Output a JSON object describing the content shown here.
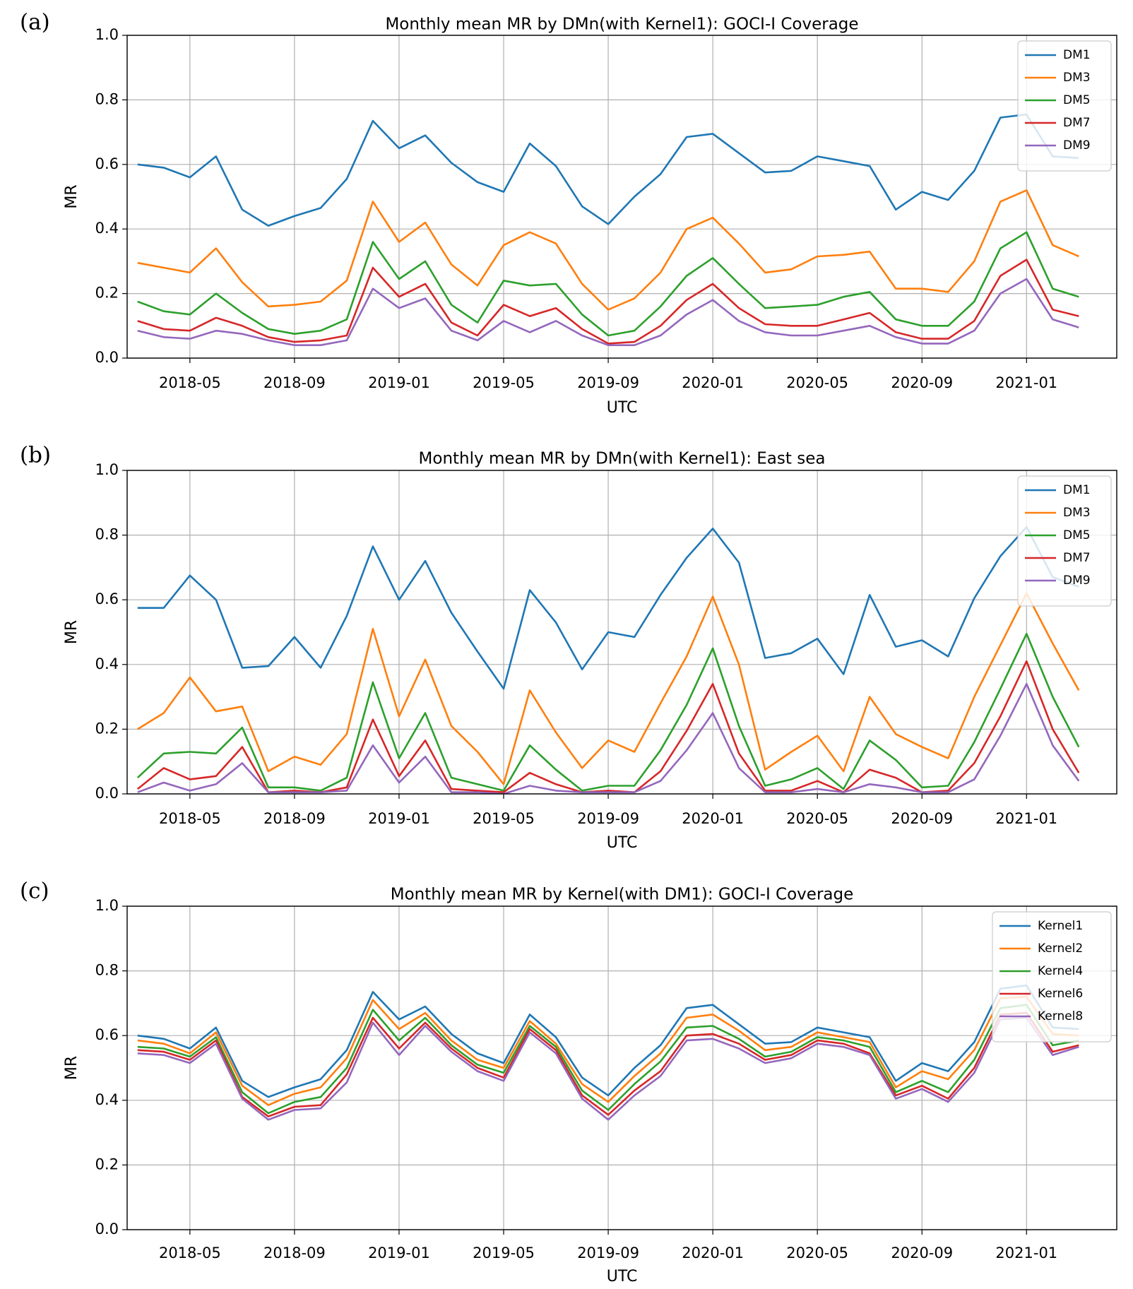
{
  "chart_data": [
    {
      "panel_label": "(a)",
      "type": "line",
      "title": "Monthly mean MR by DMn(with Kernel1): GOCI-I Coverage",
      "xlabel": "UTC",
      "ylabel": "MR",
      "ylim": [
        0,
        1.0
      ],
      "yticks": [
        "0.0",
        "0.2",
        "0.4",
        "0.6",
        "0.8",
        "1.0"
      ],
      "xticks": [
        "2018-05",
        "2018-09",
        "2019-01",
        "2019-05",
        "2019-09",
        "2020-01",
        "2020-05",
        "2020-09",
        "2021-01"
      ],
      "grid": true,
      "legend_position": "top-right",
      "x": [
        "2018-03",
        "2018-04",
        "2018-05",
        "2018-06",
        "2018-07",
        "2018-08",
        "2018-09",
        "2018-10",
        "2018-11",
        "2018-12",
        "2019-01",
        "2019-02",
        "2019-03",
        "2019-04",
        "2019-05",
        "2019-06",
        "2019-07",
        "2019-08",
        "2019-09",
        "2019-10",
        "2019-11",
        "2019-12",
        "2020-01",
        "2020-02",
        "2020-03",
        "2020-04",
        "2020-05",
        "2020-06",
        "2020-07",
        "2020-08",
        "2020-09",
        "2020-10",
        "2020-11",
        "2020-12",
        "2021-01",
        "2021-02",
        "2021-03"
      ],
      "series": [
        {
          "name": "DM1",
          "color": "#1f77b4",
          "values": [
            0.6,
            0.59,
            0.56,
            0.625,
            0.46,
            0.41,
            0.44,
            0.465,
            0.555,
            0.735,
            0.65,
            0.69,
            0.605,
            0.545,
            0.515,
            0.665,
            0.595,
            0.47,
            0.415,
            0.5,
            0.57,
            0.685,
            0.695,
            0.635,
            0.575,
            0.58,
            0.625,
            0.61,
            0.595,
            0.46,
            0.515,
            0.49,
            0.58,
            0.745,
            0.755,
            0.625,
            0.62
          ]
        },
        {
          "name": "DM3",
          "color": "#ff7f0e",
          "values": [
            0.295,
            0.28,
            0.265,
            0.34,
            0.235,
            0.16,
            0.165,
            0.175,
            0.24,
            0.485,
            0.36,
            0.42,
            0.29,
            0.225,
            0.35,
            0.39,
            0.355,
            0.23,
            0.15,
            0.185,
            0.265,
            0.4,
            0.435,
            0.355,
            0.265,
            0.275,
            0.315,
            0.32,
            0.33,
            0.215,
            0.215,
            0.205,
            0.3,
            0.485,
            0.52,
            0.35,
            0.315
          ]
        },
        {
          "name": "DM5",
          "color": "#2ca02c",
          "values": [
            0.175,
            0.145,
            0.135,
            0.2,
            0.14,
            0.09,
            0.075,
            0.085,
            0.12,
            0.36,
            0.245,
            0.3,
            0.165,
            0.11,
            0.24,
            0.225,
            0.23,
            0.135,
            0.07,
            0.085,
            0.16,
            0.255,
            0.31,
            0.23,
            0.155,
            0.16,
            0.165,
            0.19,
            0.205,
            0.12,
            0.1,
            0.1,
            0.175,
            0.34,
            0.39,
            0.215,
            0.19
          ]
        },
        {
          "name": "DM7",
          "color": "#d62728",
          "values": [
            0.115,
            0.09,
            0.085,
            0.125,
            0.1,
            0.065,
            0.05,
            0.055,
            0.07,
            0.28,
            0.19,
            0.23,
            0.11,
            0.07,
            0.165,
            0.13,
            0.155,
            0.09,
            0.045,
            0.05,
            0.1,
            0.18,
            0.23,
            0.155,
            0.105,
            0.1,
            0.1,
            0.12,
            0.14,
            0.08,
            0.06,
            0.06,
            0.115,
            0.255,
            0.305,
            0.15,
            0.13
          ]
        },
        {
          "name": "DM9",
          "color": "#9467bd",
          "values": [
            0.085,
            0.065,
            0.06,
            0.085,
            0.075,
            0.055,
            0.04,
            0.04,
            0.055,
            0.215,
            0.155,
            0.185,
            0.085,
            0.055,
            0.115,
            0.08,
            0.115,
            0.07,
            0.04,
            0.04,
            0.07,
            0.135,
            0.18,
            0.115,
            0.08,
            0.07,
            0.07,
            0.085,
            0.1,
            0.065,
            0.045,
            0.045,
            0.085,
            0.2,
            0.245,
            0.12,
            0.095
          ]
        }
      ]
    },
    {
      "panel_label": "(b)",
      "type": "line",
      "title": "Monthly mean MR by DMn(with Kernel1): East sea",
      "xlabel": "UTC",
      "ylabel": "MR",
      "ylim": [
        0,
        1.0
      ],
      "yticks": [
        "0.0",
        "0.2",
        "0.4",
        "0.6",
        "0.8",
        "1.0"
      ],
      "xticks": [
        "2018-05",
        "2018-09",
        "2019-01",
        "2019-05",
        "2019-09",
        "2020-01",
        "2020-05",
        "2020-09",
        "2021-01"
      ],
      "grid": true,
      "legend_position": "top-right",
      "x": [
        "2018-03",
        "2018-04",
        "2018-05",
        "2018-06",
        "2018-07",
        "2018-08",
        "2018-09",
        "2018-10",
        "2018-11",
        "2018-12",
        "2019-01",
        "2019-02",
        "2019-03",
        "2019-04",
        "2019-05",
        "2019-06",
        "2019-07",
        "2019-08",
        "2019-09",
        "2019-10",
        "2019-11",
        "2019-12",
        "2020-01",
        "2020-02",
        "2020-03",
        "2020-04",
        "2020-05",
        "2020-06",
        "2020-07",
        "2020-08",
        "2020-09",
        "2020-10",
        "2020-11",
        "2020-12",
        "2021-01",
        "2021-02",
        "2021-03"
      ],
      "series": [
        {
          "name": "DM1",
          "color": "#1f77b4",
          "values": [
            0.575,
            0.575,
            0.675,
            0.6,
            0.39,
            0.395,
            0.485,
            0.39,
            0.55,
            0.765,
            0.6,
            0.72,
            0.56,
            0.44,
            0.325,
            0.63,
            0.53,
            0.385,
            0.5,
            0.485,
            0.615,
            0.73,
            0.82,
            0.715,
            0.42,
            0.435,
            0.48,
            0.37,
            0.615,
            0.455,
            0.475,
            0.425,
            0.605,
            0.735,
            0.825,
            0.67,
            0.64
          ]
        },
        {
          "name": "DM3",
          "color": "#ff7f0e",
          "values": [
            0.2,
            0.25,
            0.36,
            0.255,
            0.27,
            0.07,
            0.115,
            0.09,
            0.185,
            0.51,
            0.24,
            0.415,
            0.21,
            0.13,
            0.03,
            0.32,
            0.19,
            0.08,
            0.165,
            0.13,
            0.28,
            0.425,
            0.61,
            0.4,
            0.075,
            0.13,
            0.18,
            0.07,
            0.3,
            0.185,
            0.145,
            0.11,
            0.3,
            0.46,
            0.62,
            0.465,
            0.32
          ]
        },
        {
          "name": "DM5",
          "color": "#2ca02c",
          "values": [
            0.05,
            0.125,
            0.13,
            0.125,
            0.205,
            0.02,
            0.02,
            0.01,
            0.05,
            0.345,
            0.11,
            0.25,
            0.05,
            0.03,
            0.01,
            0.15,
            0.075,
            0.01,
            0.025,
            0.025,
            0.135,
            0.275,
            0.45,
            0.21,
            0.025,
            0.045,
            0.08,
            0.015,
            0.165,
            0.105,
            0.02,
            0.025,
            0.16,
            0.325,
            0.495,
            0.3,
            0.145
          ]
        },
        {
          "name": "DM7",
          "color": "#d62728",
          "values": [
            0.015,
            0.08,
            0.045,
            0.055,
            0.145,
            0.005,
            0.01,
            0.005,
            0.02,
            0.23,
            0.055,
            0.165,
            0.015,
            0.01,
            0.005,
            0.065,
            0.03,
            0.005,
            0.01,
            0.005,
            0.07,
            0.195,
            0.34,
            0.125,
            0.01,
            0.01,
            0.04,
            0.005,
            0.075,
            0.05,
            0.005,
            0.01,
            0.095,
            0.24,
            0.41,
            0.2,
            0.065
          ]
        },
        {
          "name": "DM9",
          "color": "#9467bd",
          "values": [
            0.005,
            0.035,
            0.01,
            0.03,
            0.095,
            0.005,
            0.005,
            0.005,
            0.01,
            0.15,
            0.035,
            0.115,
            0.005,
            0.005,
            0.0,
            0.025,
            0.01,
            0.005,
            0.005,
            0.005,
            0.04,
            0.135,
            0.25,
            0.08,
            0.005,
            0.005,
            0.015,
            0.005,
            0.03,
            0.02,
            0.005,
            0.005,
            0.045,
            0.18,
            0.34,
            0.15,
            0.04
          ]
        }
      ]
    },
    {
      "panel_label": "(c)",
      "type": "line",
      "title": "Monthly mean MR by Kernel(with DM1): GOCI-I Coverage",
      "xlabel": "UTC",
      "ylabel": "MR",
      "ylim": [
        0,
        1.0
      ],
      "yticks": [
        "0.0",
        "0.2",
        "0.4",
        "0.6",
        "0.8",
        "1.0"
      ],
      "xticks": [
        "2018-05",
        "2018-09",
        "2019-01",
        "2019-05",
        "2019-09",
        "2020-01",
        "2020-05",
        "2020-09",
        "2021-01"
      ],
      "grid": true,
      "legend_position": "top-right",
      "x": [
        "2018-03",
        "2018-04",
        "2018-05",
        "2018-06",
        "2018-07",
        "2018-08",
        "2018-09",
        "2018-10",
        "2018-11",
        "2018-12",
        "2019-01",
        "2019-02",
        "2019-03",
        "2019-04",
        "2019-05",
        "2019-06",
        "2019-07",
        "2019-08",
        "2019-09",
        "2019-10",
        "2019-11",
        "2019-12",
        "2020-01",
        "2020-02",
        "2020-03",
        "2020-04",
        "2020-05",
        "2020-06",
        "2020-07",
        "2020-08",
        "2020-09",
        "2020-10",
        "2020-11",
        "2020-12",
        "2021-01",
        "2021-02",
        "2021-03"
      ],
      "series": [
        {
          "name": "Kernel1",
          "color": "#1f77b4",
          "values": [
            0.6,
            0.59,
            0.56,
            0.625,
            0.46,
            0.41,
            0.44,
            0.465,
            0.555,
            0.735,
            0.65,
            0.69,
            0.605,
            0.545,
            0.515,
            0.665,
            0.595,
            0.47,
            0.415,
            0.5,
            0.57,
            0.685,
            0.695,
            0.635,
            0.575,
            0.58,
            0.625,
            0.61,
            0.595,
            0.46,
            0.515,
            0.49,
            0.58,
            0.745,
            0.755,
            0.625,
            0.62
          ]
        },
        {
          "name": "Kernel2",
          "color": "#ff7f0e",
          "values": [
            0.585,
            0.575,
            0.545,
            0.61,
            0.445,
            0.385,
            0.42,
            0.44,
            0.53,
            0.71,
            0.62,
            0.67,
            0.585,
            0.525,
            0.5,
            0.645,
            0.575,
            0.45,
            0.395,
            0.475,
            0.545,
            0.655,
            0.665,
            0.615,
            0.555,
            0.565,
            0.61,
            0.595,
            0.58,
            0.44,
            0.49,
            0.465,
            0.555,
            0.715,
            0.72,
            0.605,
            0.6
          ]
        },
        {
          "name": "Kernel4",
          "color": "#2ca02c",
          "values": [
            0.565,
            0.56,
            0.535,
            0.595,
            0.425,
            0.36,
            0.395,
            0.41,
            0.5,
            0.68,
            0.585,
            0.655,
            0.57,
            0.51,
            0.485,
            0.63,
            0.565,
            0.43,
            0.37,
            0.45,
            0.52,
            0.625,
            0.63,
            0.59,
            0.535,
            0.55,
            0.595,
            0.585,
            0.565,
            0.425,
            0.46,
            0.425,
            0.525,
            0.685,
            0.695,
            0.57,
            0.585
          ]
        },
        {
          "name": "Kernel6",
          "color": "#d62728",
          "values": [
            0.555,
            0.55,
            0.525,
            0.585,
            0.41,
            0.35,
            0.38,
            0.385,
            0.48,
            0.655,
            0.56,
            0.64,
            0.56,
            0.5,
            0.47,
            0.62,
            0.555,
            0.415,
            0.355,
            0.43,
            0.49,
            0.6,
            0.605,
            0.575,
            0.525,
            0.54,
            0.585,
            0.575,
            0.545,
            0.415,
            0.445,
            0.405,
            0.5,
            0.665,
            0.67,
            0.55,
            0.57
          ]
        },
        {
          "name": "Kernel8",
          "color": "#9467bd",
          "values": [
            0.545,
            0.54,
            0.515,
            0.575,
            0.405,
            0.34,
            0.37,
            0.375,
            0.455,
            0.64,
            0.54,
            0.63,
            0.55,
            0.49,
            0.46,
            0.61,
            0.545,
            0.405,
            0.34,
            0.415,
            0.475,
            0.585,
            0.59,
            0.56,
            0.515,
            0.53,
            0.575,
            0.565,
            0.54,
            0.405,
            0.435,
            0.395,
            0.485,
            0.65,
            0.655,
            0.54,
            0.565
          ]
        }
      ]
    }
  ]
}
